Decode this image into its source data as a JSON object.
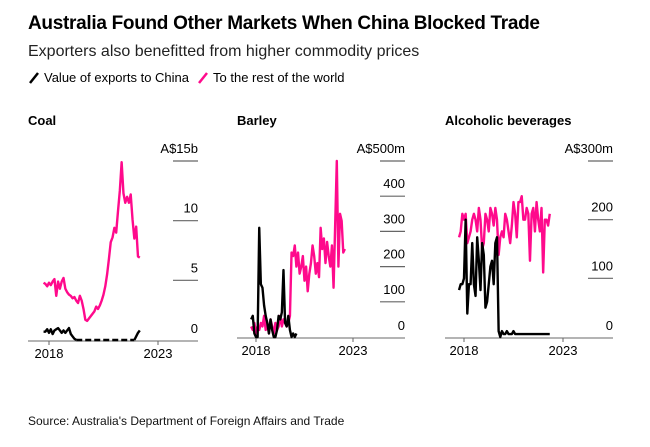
{
  "header": {
    "title": "Australia Found Other Markets When China Blocked Trade",
    "subtitle": "Exporters also benefitted from higher commodity prices"
  },
  "legend": [
    {
      "label": "Value of exports to China",
      "color": "#000000"
    },
    {
      "label": "To the rest of the world",
      "color": "#ff0a8c"
    }
  ],
  "source": "Source: Australia's Department of Foreign Affairs and Trade",
  "chart_data": [
    {
      "type": "line",
      "title": "Coal",
      "unit_label": "A$15b",
      "yticks": [
        0,
        5,
        10,
        15
      ],
      "ytick_labels": [
        "0",
        "5",
        "10",
        "A$15b"
      ],
      "ylim": [
        0,
        15
      ],
      "xlim": [
        2017.6,
        2024.9
      ],
      "xticks": [
        2018,
        2023
      ],
      "xtick_labels": [
        "2018",
        "2023"
      ],
      "x_start": 2017.75,
      "x_step": 0.0833,
      "series": [
        {
          "name": "To the rest of the world",
          "color": "#ff0a8c",
          "values": [
            4.8,
            4.7,
            4.5,
            4.8,
            4.6,
            4.9,
            5.1,
            3.7,
            4.9,
            4.3,
            4.9,
            5.2,
            4.3,
            4.0,
            3.8,
            3.7,
            3.5,
            3.6,
            3.3,
            3.1,
            3.7,
            3.3,
            2.6,
            1.7,
            1.6,
            1.8,
            2.0,
            2.2,
            2.4,
            2.8,
            2.6,
            2.9,
            3.3,
            3.8,
            4.5,
            5.5,
            6.8,
            8.2,
            8.6,
            9.4,
            9.0,
            10.8,
            12.5,
            14.9,
            12.3,
            11.5,
            12.0,
            11.5,
            12.2,
            10.1,
            8.5,
            9.5,
            7.0,
            6.9
          ]
        },
        {
          "name": "Value of exports to China",
          "color": "#000000",
          "values": [
            0.7,
            0.7,
            0.9,
            0.6,
            0.9,
            0.5,
            0.8,
            0.9,
            1.0,
            0.8,
            0.6,
            0.8,
            0.6,
            0.8,
            1.0,
            0.5,
            0.3,
            0.1,
            0.0,
            0.0,
            0.0,
            0.0,
            0.0,
            0.0,
            0.0,
            0.0,
            0.0,
            0.0,
            0.0,
            0.0,
            0.0,
            0.0,
            0.0,
            0.0,
            0.0,
            0.0,
            0.0,
            0.0,
            0.0,
            0.0,
            0.0,
            0.0,
            0.0,
            0.0,
            0.0,
            0.0,
            0.0,
            0.0,
            0.0,
            0.0,
            0.0,
            0.3,
            0.6,
            0.8
          ]
        }
      ]
    },
    {
      "type": "line",
      "title": "Barley",
      "unit_label": "A$500m",
      "yticks": [
        0,
        100,
        200,
        300,
        400,
        500
      ],
      "ytick_labels": [
        "0",
        "100",
        "200",
        "300",
        "400",
        "A$500m"
      ],
      "ylim": [
        0,
        500
      ],
      "xlim": [
        2017.6,
        2024.9
      ],
      "xticks": [
        2018,
        2023
      ],
      "xtick_labels": [
        "2018",
        "2023"
      ],
      "x_start": 2017.75,
      "x_step": 0.0833,
      "series": [
        {
          "name": "To the rest of the world",
          "color": "#ff0a8c",
          "values": [
            30,
            20,
            40,
            10,
            30,
            20,
            40,
            30,
            60,
            20,
            40,
            10,
            50,
            30,
            10,
            40,
            20,
            30,
            60,
            30,
            50,
            40,
            30,
            40,
            60,
            240,
            230,
            260,
            200,
            240,
            180,
            200,
            230,
            160,
            200,
            130,
            180,
            210,
            260,
            230,
            180,
            210,
            170,
            310,
            250,
            280,
            210,
            270,
            230,
            200,
            260,
            140,
            320,
            500,
            200,
            350,
            330,
            240,
            250
          ]
        },
        {
          "name": "Value of exports to China",
          "color": "#000000",
          "values": [
            50,
            60,
            10,
            0,
            0,
            310,
            150,
            140,
            90,
            60,
            40,
            10,
            50,
            20,
            0,
            0,
            20,
            60,
            50,
            70,
            190,
            40,
            30,
            60,
            20,
            0,
            10,
            0,
            10
          ]
        }
      ]
    },
    {
      "type": "line",
      "title": "Alcoholic beverages",
      "unit_label": "A$300m",
      "yticks": [
        0,
        100,
        200,
        300
      ],
      "ytick_labels": [
        "0",
        "100",
        "200",
        "A$300m"
      ],
      "ylim": [
        0,
        300
      ],
      "xlim": [
        2017.6,
        2024.9
      ],
      "xticks": [
        2018,
        2023
      ],
      "xtick_labels": [
        "2018",
        "2023"
      ],
      "x_start": 2017.75,
      "x_step": 0.0833,
      "series": [
        {
          "name": "To the rest of the world",
          "color": "#ff0a8c",
          "values": [
            170,
            180,
            210,
            200,
            210,
            160,
            170,
            180,
            200,
            210,
            200,
            180,
            220,
            200,
            150,
            160,
            210,
            200,
            180,
            220,
            210,
            190,
            220,
            200,
            140,
            170,
            180,
            170,
            210,
            200,
            180,
            160,
            190,
            230,
            210,
            170,
            230,
            230,
            240,
            200,
            200,
            220,
            210,
            130,
            210,
            220,
            180,
            230,
            200,
            180,
            220,
            110,
            200,
            200,
            190,
            210
          ]
        },
        {
          "name": "Value of exports to China",
          "color": "#000000",
          "values": [
            80,
            90,
            90,
            100,
            200,
            40,
            90,
            90,
            160,
            90,
            70,
            170,
            130,
            80,
            160,
            140,
            50,
            60,
            90,
            120,
            130,
            90,
            160,
            170,
            10,
            0,
            10,
            5,
            5,
            10,
            5,
            5,
            5,
            10,
            5,
            5,
            5,
            5,
            5,
            5,
            5,
            5,
            5,
            5,
            5,
            5,
            5,
            5,
            5,
            5,
            5,
            5,
            5,
            5,
            5,
            5
          ]
        }
      ]
    }
  ]
}
